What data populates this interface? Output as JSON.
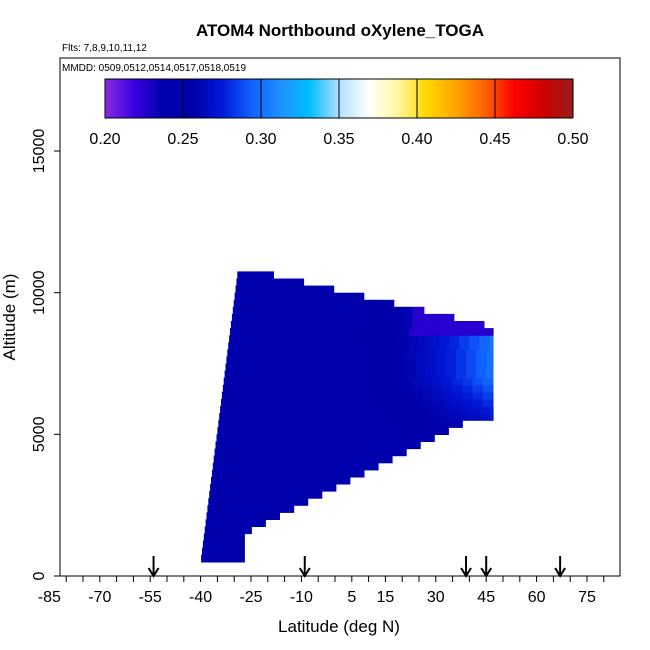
{
  "chart_data": {
    "type": "heatmap",
    "title": "ATOM4 Northbound oXylene_TOGA",
    "flights_note": "Flts: 7,8,9,10,11,12",
    "dates_note": "MMDD: 0509,0512,0514,0517,0518,0519",
    "xlabel": "Latitude (deg N)",
    "ylabel": "Altitude (m)",
    "xlim": [
      -90,
      90
    ],
    "ylim": [
      0,
      17500
    ],
    "x_tick_values": [
      -85,
      -70,
      -55,
      -40,
      -25,
      -10,
      5,
      15,
      30,
      45,
      60,
      75
    ],
    "x_tick_labels": [
      "-85",
      "-70",
      "-55",
      "-40",
      "-25",
      "-10",
      "5",
      "15",
      "30",
      "45",
      "60",
      "75"
    ],
    "x_minor_step": 5,
    "y_tick_values": [
      0,
      5000,
      10000,
      15000
    ],
    "y_tick_labels": [
      "0",
      "5000",
      "10000",
      "15000"
    ],
    "colorbar": {
      "min": 0.2,
      "max": 0.5,
      "tick_values": [
        0.2,
        0.25,
        0.3,
        0.35,
        0.4,
        0.45,
        0.5
      ],
      "tick_labels": [
        "0.20",
        "0.25",
        "0.30",
        "0.35",
        "0.40",
        "0.45",
        "0.50"
      ],
      "colors": [
        "#8a2be2",
        "#3a00e0",
        "#0000b0",
        "#0000a8",
        "#0018d8",
        "#1060ff",
        "#1e90ff",
        "#00bfff",
        "#b0e0ff",
        "#ffffff",
        "#fff8a0",
        "#ffd700",
        "#ffa500",
        "#ff6000",
        "#ff0000",
        "#cc0000",
        "#9b1c1c"
      ]
    },
    "flight_arrow_latitudes": [
      -54,
      -9,
      39,
      45,
      67
    ],
    "heat_region": {
      "lat_min": -40,
      "lat_max": 47,
      "alt_bottom": 500,
      "alt_top": 10700,
      "alt_step": 250
    }
  }
}
